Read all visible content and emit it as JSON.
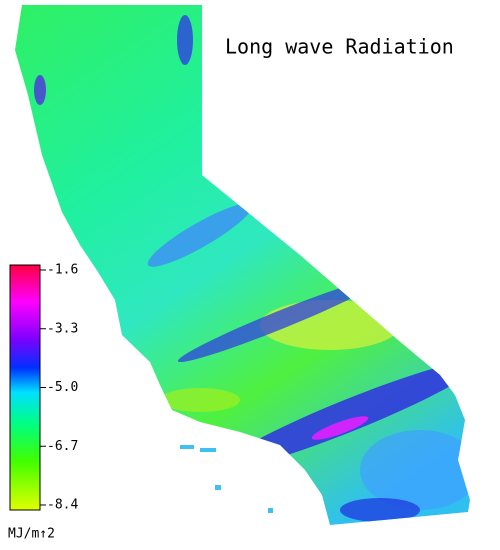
{
  "title": "Long wave Radiation",
  "colorbar": {
    "lim": [
      -8.4,
      -1.6
    ],
    "ticks": [
      -1.6,
      -3.3,
      {
        "value": -5,
        "label": "-5.0"
      },
      -6.7,
      -8.4
    ],
    "label": "MJ/m↑2"
  }
}
